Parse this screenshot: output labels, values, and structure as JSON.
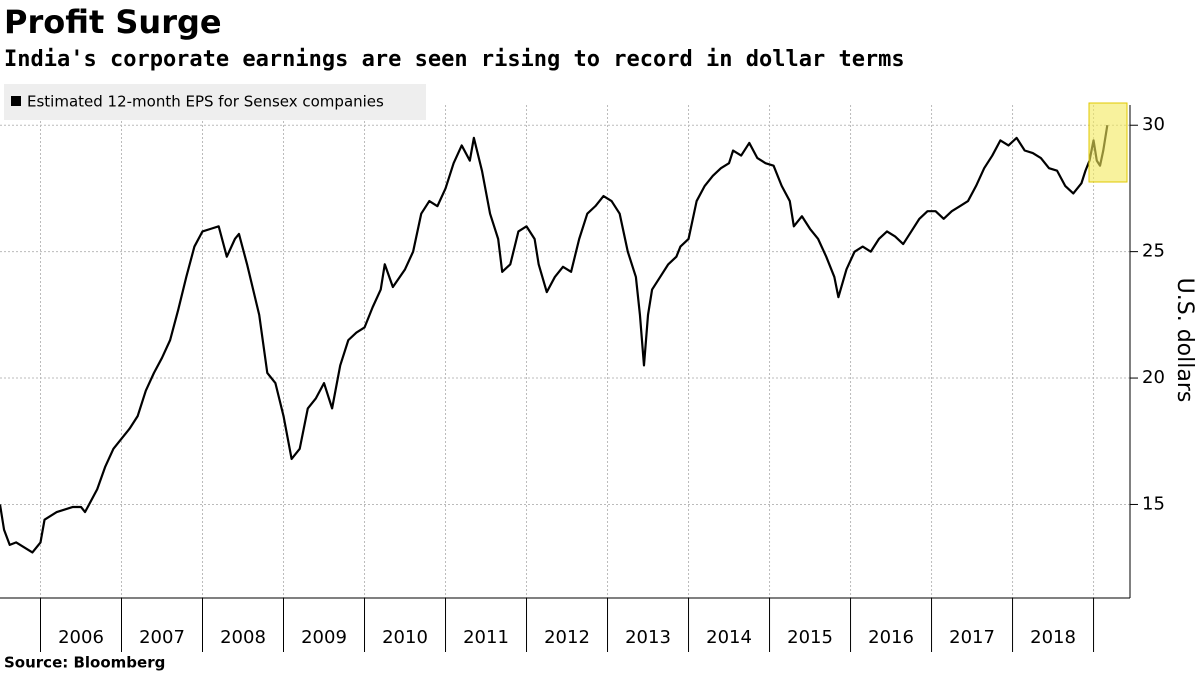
{
  "chart_data": {
    "type": "line",
    "title": "Profit Surge",
    "subtitle": "India's corporate earnings are seen rising to record in dollar terms",
    "source": "Source: Bloomberg",
    "y_axis_label": "U.S. dollars",
    "years": [
      "2006",
      "2007",
      "2008",
      "2009",
      "2010",
      "2011",
      "2012",
      "2013",
      "2014",
      "2015",
      "2016",
      "2017",
      "2018"
    ],
    "xlim": [
      2005.5,
      2019.45
    ],
    "xticks": [
      2006,
      2007,
      2008,
      2009,
      2010,
      2011,
      2012,
      2013,
      2014,
      2015,
      2016,
      2017,
      2018,
      2019
    ],
    "ylim": [
      11.3,
      30.8
    ],
    "yticks": [
      15,
      20,
      25,
      30
    ],
    "grid": true,
    "legend": "top-left",
    "series": [
      {
        "name": "Estimated 12-month EPS for Sensex companies",
        "color": "#000000",
        "x": [
          2005.5,
          2005.55,
          2005.62,
          2005.7,
          2005.8,
          2005.9,
          2006.0,
          2006.05,
          2006.2,
          2006.4,
          2006.5,
          2006.55,
          2006.7,
          2006.8,
          2006.9,
          2007.0,
          2007.1,
          2007.2,
          2007.3,
          2007.4,
          2007.5,
          2007.6,
          2007.7,
          2007.8,
          2007.9,
          2008.0,
          2008.1,
          2008.2,
          2008.3,
          2008.4,
          2008.45,
          2008.55,
          2008.7,
          2008.8,
          2008.9,
          2009.0,
          2009.1,
          2009.2,
          2009.3,
          2009.4,
          2009.5,
          2009.6,
          2009.7,
          2009.8,
          2009.9,
          2010.0,
          2010.1,
          2010.2,
          2010.25,
          2010.35,
          2010.5,
          2010.6,
          2010.7,
          2010.8,
          2010.9,
          2011.0,
          2011.1,
          2011.2,
          2011.3,
          2011.35,
          2011.45,
          2011.55,
          2011.6,
          2011.65,
          2011.7,
          2011.8,
          2011.9,
          2012.0,
          2012.1,
          2012.15,
          2012.25,
          2012.35,
          2012.45,
          2012.55,
          2012.65,
          2012.75,
          2012.85,
          2012.95,
          2013.05,
          2013.15,
          2013.25,
          2013.35,
          2013.4,
          2013.45,
          2013.5,
          2013.55,
          2013.65,
          2013.75,
          2013.85,
          2013.9,
          2014.0,
          2014.1,
          2014.2,
          2014.3,
          2014.4,
          2014.5,
          2014.55,
          2014.65,
          2014.75,
          2014.85,
          2014.95,
          2015.05,
          2015.15,
          2015.25,
          2015.3,
          2015.4,
          2015.5,
          2015.6,
          2015.7,
          2015.8,
          2015.85,
          2015.95,
          2016.05,
          2016.15,
          2016.25,
          2016.35,
          2016.45,
          2016.55,
          2016.65,
          2016.75,
          2016.85,
          2016.95,
          2017.05,
          2017.15,
          2017.25,
          2017.35,
          2017.45,
          2017.55,
          2017.65,
          2017.75,
          2017.85,
          2017.95,
          2018.05,
          2018.15,
          2018.25,
          2018.35,
          2018.45,
          2018.55,
          2018.65,
          2018.75,
          2018.85,
          2018.9,
          2018.95,
          2019.0,
          2019.04,
          2019.08,
          2019.12,
          2019.17
        ],
        "values": [
          15.0,
          14.0,
          13.4,
          13.5,
          13.3,
          13.1,
          13.5,
          14.4,
          14.7,
          14.9,
          14.9,
          14.7,
          15.6,
          16.5,
          17.2,
          17.6,
          18.0,
          18.5,
          19.5,
          20.2,
          20.8,
          21.5,
          22.7,
          24.0,
          25.2,
          25.8,
          25.9,
          26.0,
          24.8,
          25.5,
          25.7,
          24.5,
          22.5,
          20.2,
          19.8,
          18.5,
          16.8,
          17.2,
          18.8,
          19.2,
          19.8,
          18.8,
          20.5,
          21.5,
          21.8,
          22.0,
          22.8,
          23.5,
          24.5,
          23.6,
          24.3,
          25.0,
          26.5,
          27.0,
          26.8,
          27.5,
          28.5,
          29.2,
          28.6,
          29.5,
          28.2,
          26.5,
          26.0,
          25.5,
          24.2,
          24.5,
          25.8,
          26.0,
          25.5,
          24.5,
          23.4,
          24.0,
          24.4,
          24.2,
          25.5,
          26.5,
          26.8,
          27.2,
          27.0,
          26.5,
          25.0,
          24.0,
          22.5,
          20.5,
          22.5,
          23.5,
          24.0,
          24.5,
          24.8,
          25.2,
          25.5,
          27.0,
          27.6,
          28.0,
          28.3,
          28.5,
          29.0,
          28.8,
          29.3,
          28.7,
          28.5,
          28.4,
          27.6,
          27.0,
          26.0,
          26.4,
          25.9,
          25.5,
          24.8,
          24.0,
          23.2,
          24.3,
          25.0,
          25.2,
          25.0,
          25.5,
          25.8,
          25.6,
          25.3,
          25.8,
          26.3,
          26.6,
          26.6,
          26.3,
          26.6,
          26.8,
          27.0,
          27.6,
          28.3,
          28.8,
          29.4,
          29.2,
          29.5,
          29.0,
          28.9,
          28.7,
          28.3,
          28.2,
          27.6,
          27.3,
          27.7,
          28.2,
          28.6,
          29.4,
          28.6,
          28.4,
          29.0,
          30.0
        ]
      }
    ]
  }
}
